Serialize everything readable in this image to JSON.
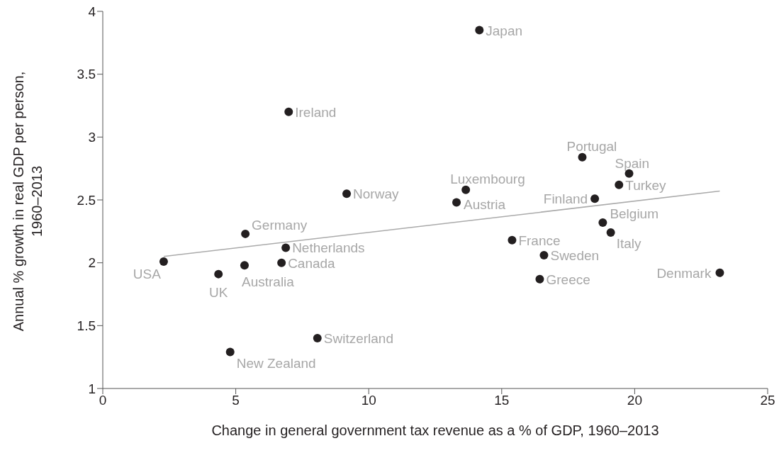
{
  "chart_data": {
    "type": "scatter",
    "xlabel": "Change in general government tax revenue as a % of GDP, 1960–2013",
    "ylabel": "Annual % growth in real GDP per person, 1960–2013",
    "xlim": [
      0,
      25
    ],
    "xticks": [
      0,
      5,
      10,
      15,
      20,
      25
    ],
    "ylim": [
      1,
      4
    ],
    "yticks": [
      1,
      1.5,
      2,
      2.5,
      3,
      3.5,
      4
    ],
    "series": [
      {
        "marker": "circle",
        "color": "#231f20",
        "x": [
          14.16,
          6.99,
          18.03,
          19.79,
          19.41,
          13.65,
          9.17,
          18.5,
          13.3,
          18.8,
          19.1,
          5.36,
          15.39,
          6.88,
          16.59,
          2.29,
          6.72,
          5.33,
          23.2,
          4.35,
          16.43,
          8.07,
          4.79
        ],
        "values": [
          3.85,
          3.2,
          2.84,
          2.71,
          2.62,
          2.58,
          2.55,
          2.51,
          2.48,
          2.32,
          2.24,
          2.23,
          2.18,
          2.12,
          2.06,
          2.01,
          2.0,
          1.98,
          1.92,
          1.91,
          1.87,
          1.4,
          1.29
        ]
      },
      {
        "type": "line",
        "color": "#aaaaaa",
        "x": [
          2.29,
          23.2
        ],
        "values": [
          2.05,
          2.57
        ]
      }
    ],
    "annotations": [
      {
        "text": "Japan",
        "x": 14.16,
        "y": 3.85
      },
      {
        "text": "Ireland",
        "x": 6.99,
        "y": 3.2
      },
      {
        "text": "Portugal",
        "x": 18.03,
        "y": 2.84
      },
      {
        "text": "Spain",
        "x": 19.79,
        "y": 2.71
      },
      {
        "text": "Turkey",
        "x": 19.41,
        "y": 2.62
      },
      {
        "text": "Luxembourg",
        "x": 13.65,
        "y": 2.58
      },
      {
        "text": "Norway",
        "x": 9.17,
        "y": 2.55
      },
      {
        "text": "Finland",
        "x": 18.5,
        "y": 2.51
      },
      {
        "text": "Austria",
        "x": 13.3,
        "y": 2.48
      },
      {
        "text": "Belgium",
        "x": 18.8,
        "y": 2.32
      },
      {
        "text": "Italy",
        "x": 19.1,
        "y": 2.24
      },
      {
        "text": "Germany",
        "x": 5.36,
        "y": 2.23
      },
      {
        "text": "France",
        "x": 15.39,
        "y": 2.18
      },
      {
        "text": "Netherlands",
        "x": 6.88,
        "y": 2.12
      },
      {
        "text": "Sweden",
        "x": 16.59,
        "y": 2.06
      },
      {
        "text": "USA",
        "x": 2.29,
        "y": 2.01
      },
      {
        "text": "Canada",
        "x": 6.72,
        "y": 2.0
      },
      {
        "text": "Australia",
        "x": 5.33,
        "y": 1.98
      },
      {
        "text": "Denmark",
        "x": 23.2,
        "y": 1.92
      },
      {
        "text": "UK",
        "x": 4.35,
        "y": 1.91
      },
      {
        "text": "Greece",
        "x": 16.43,
        "y": 1.87
      },
      {
        "text": "Switzerland",
        "x": 8.07,
        "y": 1.4
      },
      {
        "text": "New Zealand",
        "x": 4.79,
        "y": 1.29
      }
    ]
  }
}
